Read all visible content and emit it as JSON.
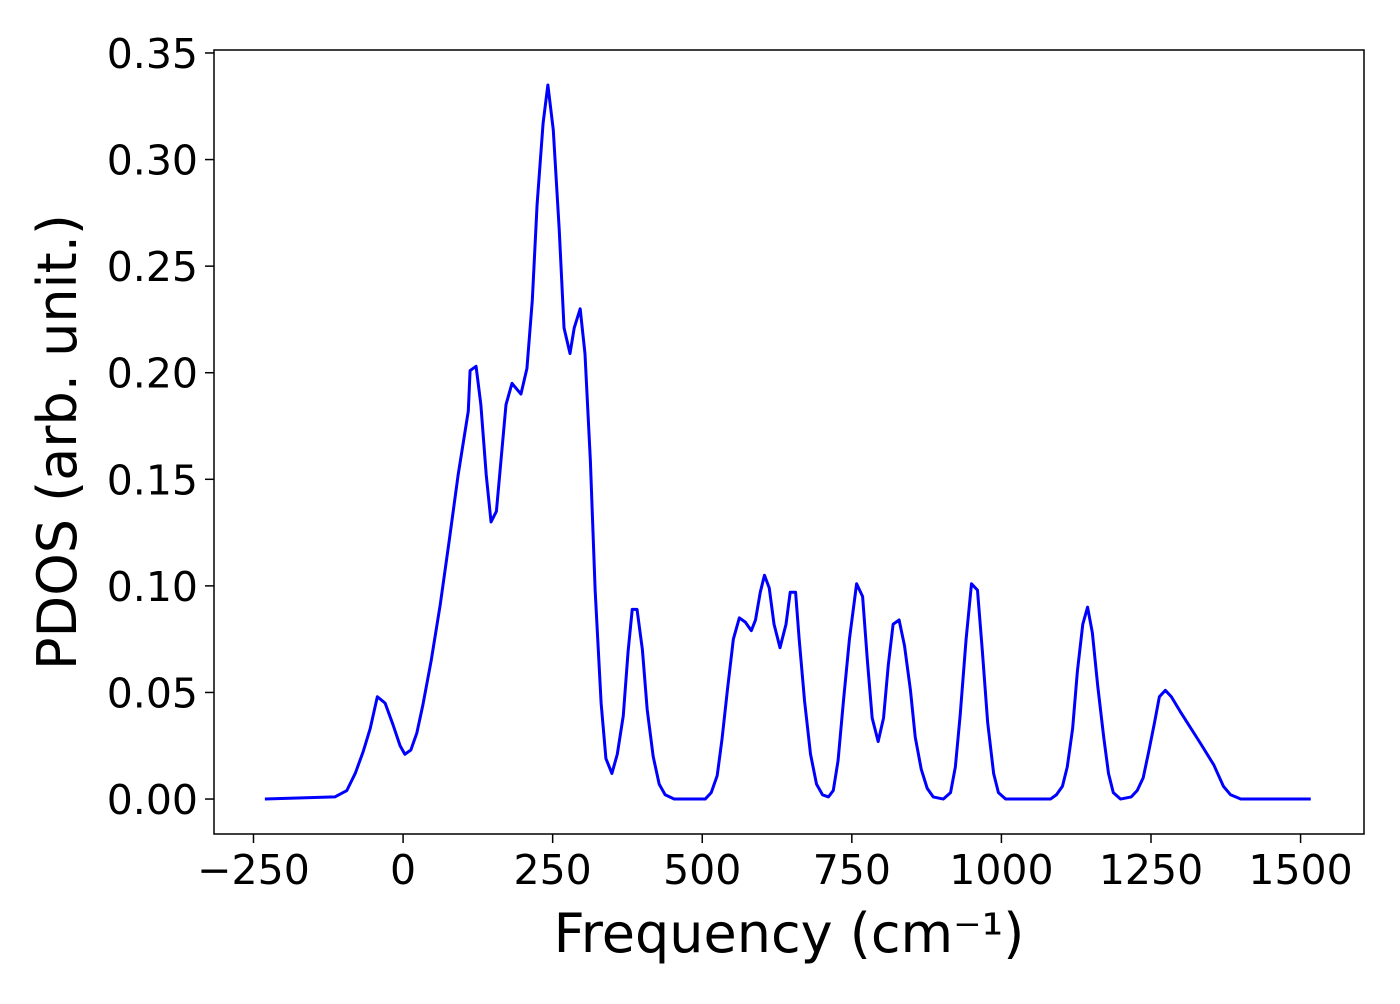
{
  "chart_data": {
    "type": "line",
    "xlabel": "Frequency (cm⁻¹)",
    "ylabel": "PDOS (arb. unit.)",
    "xlim": [
      -316,
      1606
    ],
    "ylim": [
      -0.0164,
      0.3514
    ],
    "xticks": [
      {
        "value": -250,
        "label": "−250"
      },
      0,
      250,
      500,
      750,
      1000,
      1250,
      1500
    ],
    "yticks": [
      {
        "value": 0,
        "label": "0.00"
      },
      {
        "value": 0.05,
        "label": "0.05"
      },
      {
        "value": 0.1,
        "label": "0.10"
      },
      {
        "value": 0.15,
        "label": "0.15"
      },
      {
        "value": 0.2,
        "label": "0.20"
      },
      {
        "value": 0.25,
        "label": "0.25"
      },
      {
        "value": 0.3,
        "label": "0.30"
      },
      {
        "value": 0.35,
        "label": "0.35"
      }
    ],
    "series": [
      {
        "color": "#0000ff",
        "x": [
          -231,
          -114,
          -94,
          -80,
          -67,
          -55,
          -43,
          -30,
          -17,
          -5,
          3,
          13,
          23,
          33,
          47,
          62,
          77,
          92,
          109,
          112,
          122,
          130,
          139,
          147,
          156,
          164,
          172,
          182,
          197,
          207,
          216,
          224,
          234,
          242,
          251,
          261,
          269,
          279,
          286,
          296,
          304,
          313,
          321,
          331,
          339,
          349,
          358,
          368,
          376,
          383,
          391,
          400,
          408,
          418,
          428,
          438,
          453,
          505,
          515,
          525,
          533,
          542,
          552,
          562,
          572,
          582,
          589,
          597,
          604,
          612,
          620,
          630,
          640,
          647,
          656,
          662,
          671,
          681,
          691,
          701,
          711,
          719,
          727,
          736,
          746,
          758,
          768,
          776,
          784,
          794,
          803,
          811,
          819,
          829,
          838,
          848,
          856,
          866,
          876,
          886,
          903,
          915,
          923,
          931,
          941,
          950,
          960,
          968,
          977,
          987,
          995,
          1007,
          1082,
          1092,
          1102,
          1110,
          1119,
          1127,
          1136,
          1144,
          1152,
          1161,
          1171,
          1179,
          1187,
          1199,
          1217,
          1227,
          1237,
          1246,
          1256,
          1264,
          1274,
          1284,
          1299,
          1333,
          1355,
          1371,
          1383,
          1400,
          1517
        ],
        "values": [
          0,
          0.001,
          0.004,
          0.012,
          0.022,
          0.033,
          0.048,
          0.045,
          0.035,
          0.025,
          0.021,
          0.023,
          0.031,
          0.044,
          0.065,
          0.091,
          0.121,
          0.152,
          0.182,
          0.201,
          0.203,
          0.185,
          0.152,
          0.13,
          0.135,
          0.16,
          0.185,
          0.195,
          0.19,
          0.202,
          0.234,
          0.279,
          0.317,
          0.335,
          0.314,
          0.267,
          0.221,
          0.209,
          0.221,
          0.23,
          0.209,
          0.159,
          0.098,
          0.045,
          0.019,
          0.012,
          0.021,
          0.039,
          0.069,
          0.089,
          0.089,
          0.07,
          0.042,
          0.02,
          0.007,
          0.002,
          0,
          0,
          0.003,
          0.011,
          0.028,
          0.051,
          0.075,
          0.085,
          0.083,
          0.079,
          0.084,
          0.097,
          0.105,
          0.099,
          0.082,
          0.071,
          0.082,
          0.097,
          0.097,
          0.075,
          0.046,
          0.021,
          0.007,
          0.002,
          0.001,
          0.004,
          0.018,
          0.046,
          0.075,
          0.101,
          0.095,
          0.065,
          0.038,
          0.027,
          0.038,
          0.063,
          0.082,
          0.084,
          0.072,
          0.051,
          0.029,
          0.014,
          0.005,
          0.001,
          0,
          0.003,
          0.015,
          0.039,
          0.075,
          0.101,
          0.098,
          0.07,
          0.036,
          0.012,
          0.003,
          0,
          0,
          0.002,
          0.006,
          0.015,
          0.033,
          0.06,
          0.082,
          0.09,
          0.078,
          0.053,
          0.029,
          0.012,
          0.003,
          0,
          0.001,
          0.004,
          0.01,
          0.022,
          0.036,
          0.048,
          0.051,
          0.048,
          0.041,
          0.026,
          0.016,
          0.006,
          0.002,
          0,
          0
        ]
      }
    ]
  }
}
